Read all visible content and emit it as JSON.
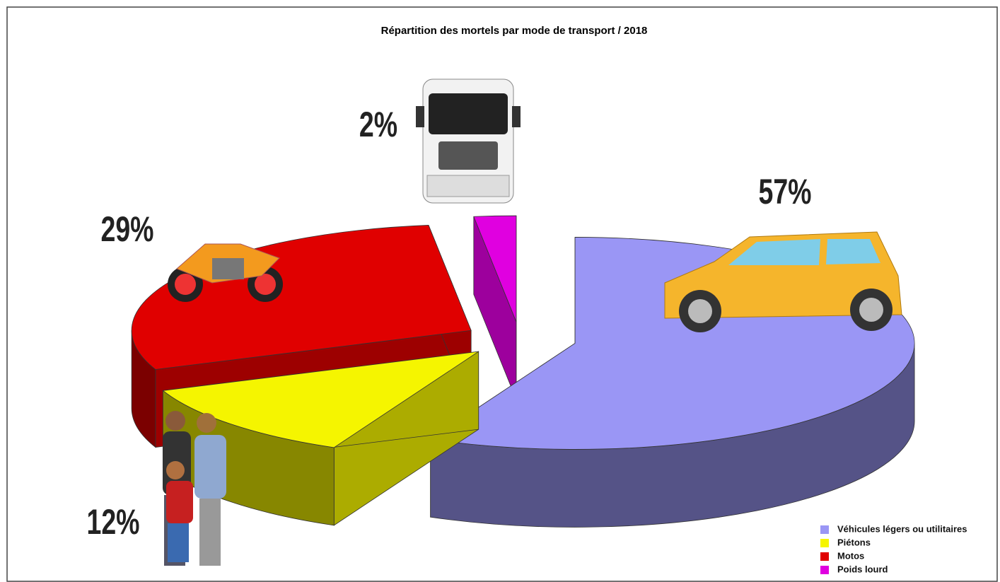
{
  "chart_data": {
    "type": "pie3d",
    "title": "Répartition des mortels par mode de transport / 2018",
    "categories": [
      "Véhicules légers ou utilitaires",
      "Piétons",
      "Motos",
      "Poids lourd"
    ],
    "values": [
      57,
      12,
      29,
      2
    ],
    "value_labels": [
      "57%",
      "12%",
      "29%",
      "2%"
    ],
    "colors": [
      "#9a96f5",
      "#f5f500",
      "#e00000",
      "#e000e0"
    ]
  }
}
